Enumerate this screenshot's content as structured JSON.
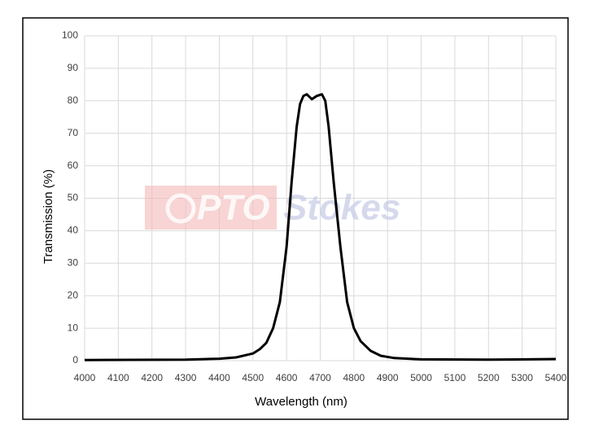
{
  "chart_data": {
    "type": "line",
    "xlabel": "Wavelength (nm)",
    "ylabel": "Transmission (%)",
    "watermark": [
      "PTO",
      "Stokes"
    ],
    "x": [
      4000,
      4300,
      4400,
      4450,
      4500,
      4520,
      4540,
      4560,
      4580,
      4600,
      4615,
      4630,
      4640,
      4650,
      4660,
      4675,
      4690,
      4705,
      4715,
      4725,
      4740,
      4760,
      4780,
      4800,
      4820,
      4850,
      4880,
      4920,
      5000,
      5200,
      5400
    ],
    "values": [
      0.2,
      0.3,
      0.6,
      1.0,
      2.2,
      3.5,
      5.5,
      10,
      18,
      35,
      55,
      72,
      79,
      81.5,
      82,
      80.5,
      81.5,
      82,
      80,
      72,
      55,
      35,
      18,
      10,
      6,
      3,
      1.5,
      0.8,
      0.4,
      0.3,
      0.5
    ],
    "color": "#000000",
    "xlim": [
      4000,
      5400
    ],
    "xticks": [
      4000,
      4100,
      4200,
      4300,
      4400,
      4500,
      4600,
      4700,
      4800,
      4900,
      5000,
      5100,
      5200,
      5300,
      5400
    ],
    "ylim": [
      0,
      100
    ],
    "yticks": [
      0,
      10,
      20,
      30,
      40,
      50,
      60,
      70,
      80,
      90,
      100
    ],
    "grid": true
  }
}
